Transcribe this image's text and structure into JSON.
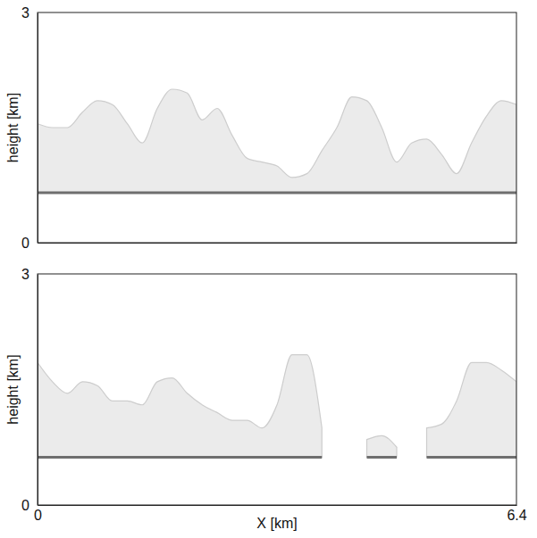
{
  "chart_data": [
    {
      "type": "area",
      "ylabel": "height [km]",
      "xlim": [
        0,
        6.4
      ],
      "ylim": [
        0,
        3
      ],
      "yticks": [
        0,
        3
      ],
      "tick_labels": "y",
      "x": [
        0,
        0.2,
        0.4,
        0.6,
        0.8,
        1,
        1.2,
        1.4,
        1.6,
        1.8,
        2,
        2.2,
        2.4,
        2.6,
        2.8,
        3,
        3.2,
        3.4,
        3.6,
        3.8,
        4,
        4.2,
        4.4,
        4.6,
        4.8,
        5,
        5.2,
        5.4,
        5.6,
        5.8,
        6,
        6.2,
        6.4
      ],
      "series": [
        {
          "color": "#ebebeb",
          "values": [
            1.55,
            1.5,
            1.5,
            1.7,
            1.85,
            1.8,
            1.55,
            1.3,
            1.75,
            2.0,
            1.95,
            1.6,
            1.75,
            1.4,
            1.1,
            1.05,
            1.0,
            0.85,
            0.9,
            1.2,
            1.5,
            1.9,
            1.85,
            1.5,
            1.05,
            1.3,
            1.35,
            1.15,
            0.9,
            1.3,
            1.65,
            1.85,
            1.8
          ],
          "base": [
            0.65,
            0.65,
            0.65,
            0.65,
            0.65,
            0.65,
            0.65,
            0.65,
            0.65,
            0.65,
            0.65,
            0.65,
            0.65,
            0.65,
            0.65,
            0.65,
            0.65,
            0.65,
            0.65,
            0.65,
            0.65,
            0.65,
            0.65,
            0.65,
            0.65,
            0.65,
            0.65,
            0.65,
            0.65,
            0.65,
            0.65,
            0.65,
            0.65
          ]
        }
      ]
    },
    {
      "type": "area",
      "ylabel": "height [km]",
      "xlabel": "X [km]",
      "xlim": [
        0,
        6.4
      ],
      "ylim": [
        0,
        3
      ],
      "xticks": [
        0,
        6.4
      ],
      "yticks": [
        0,
        3
      ],
      "x": [
        0,
        0.2,
        0.4,
        0.6,
        0.8,
        1,
        1.2,
        1.4,
        1.6,
        1.8,
        2,
        2.2,
        2.4,
        2.6,
        2.8,
        3,
        3.2,
        3.4,
        3.6,
        3.8,
        4,
        4.2,
        4.4,
        4.6,
        4.8,
        5,
        5.2,
        5.4,
        5.6,
        5.8,
        6,
        6.2,
        6.4
      ],
      "series": [
        {
          "color": "#ebebeb",
          "values": [
            1.85,
            1.6,
            1.45,
            1.6,
            1.55,
            1.35,
            1.35,
            1.3,
            1.6,
            1.65,
            1.45,
            1.3,
            1.2,
            1.1,
            1.1,
            1.0,
            1.3,
            1.95,
            1.95,
            1.0,
            null,
            null,
            0.85,
            0.9,
            0.75,
            null,
            1.0,
            1.05,
            1.35,
            1.85,
            1.85,
            1.75,
            1.6
          ],
          "base": [
            0.62,
            0.62,
            0.62,
            0.62,
            0.62,
            0.62,
            0.62,
            0.62,
            0.62,
            0.62,
            0.62,
            0.62,
            0.62,
            0.62,
            0.62,
            0.62,
            0.62,
            0.62,
            0.62,
            0.62,
            null,
            null,
            0.62,
            0.62,
            0.62,
            null,
            0.62,
            0.62,
            0.62,
            0.62,
            0.62,
            0.62,
            0.62
          ]
        }
      ]
    }
  ]
}
